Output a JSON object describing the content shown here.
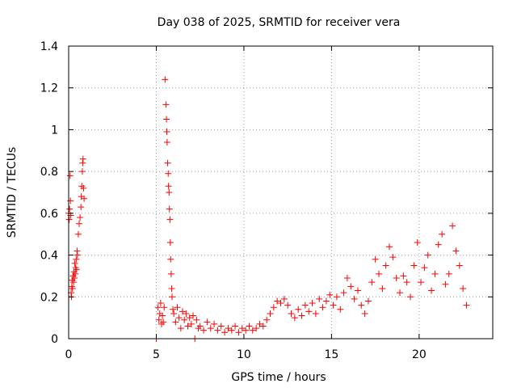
{
  "chart_data": {
    "type": "scatter",
    "title": "Day 038 of 2025, SRMTID for receiver vera",
    "xlabel": "GPS time / hours",
    "ylabel": "SRMTID / TECUs",
    "xlim": [
      0,
      24.2
    ],
    "ylim": [
      0,
      1.4
    ],
    "x_ticks": [
      0,
      5,
      10,
      15,
      20
    ],
    "x_tick_labels": [
      "0",
      "5",
      "10",
      "15",
      "20"
    ],
    "y_ticks": [
      0,
      0.2,
      0.4,
      0.6,
      0.8,
      1.0,
      1.2,
      1.4
    ],
    "y_tick_labels": [
      "0",
      "0.2",
      "0.4",
      "0.6",
      "0.8",
      "1",
      "1.2",
      "1.4"
    ],
    "grid": true,
    "marker": "+",
    "series": [
      {
        "name": "SRMTID",
        "color": "#ff0000",
        "points": [
          [
            0.0,
            0.6
          ],
          [
            0.03,
            0.57
          ],
          [
            0.05,
            0.62
          ],
          [
            0.08,
            0.78
          ],
          [
            0.1,
            0.66
          ],
          [
            0.12,
            0.59
          ],
          [
            0.14,
            0.22
          ],
          [
            0.16,
            0.2
          ],
          [
            0.18,
            0.25
          ],
          [
            0.2,
            0.28
          ],
          [
            0.22,
            0.24
          ],
          [
            0.25,
            0.3
          ],
          [
            0.28,
            0.27
          ],
          [
            0.3,
            0.32
          ],
          [
            0.33,
            0.29
          ],
          [
            0.35,
            0.36
          ],
          [
            0.38,
            0.31
          ],
          [
            0.4,
            0.34
          ],
          [
            0.43,
            0.38
          ],
          [
            0.45,
            0.33
          ],
          [
            0.48,
            0.42
          ],
          [
            0.5,
            0.4
          ],
          [
            0.55,
            0.5
          ],
          [
            0.6,
            0.55
          ],
          [
            0.65,
            0.58
          ],
          [
            0.7,
            0.63
          ],
          [
            0.72,
            0.68
          ],
          [
            0.75,
            0.73
          ],
          [
            0.78,
            0.8
          ],
          [
            0.8,
            0.84
          ],
          [
            0.82,
            0.86
          ],
          [
            0.85,
            0.72
          ],
          [
            0.88,
            0.67
          ],
          [
            5.0,
            0.0
          ],
          [
            5.1,
            0.15
          ],
          [
            5.15,
            0.09
          ],
          [
            5.2,
            0.12
          ],
          [
            5.25,
            0.17
          ],
          [
            5.3,
            0.07
          ],
          [
            5.35,
            0.11
          ],
          [
            5.4,
            0.08
          ],
          [
            5.45,
            0.15
          ],
          [
            5.5,
            1.24
          ],
          [
            5.55,
            1.12
          ],
          [
            5.58,
            1.05
          ],
          [
            5.6,
            0.99
          ],
          [
            5.62,
            0.94
          ],
          [
            5.65,
            0.84
          ],
          [
            5.68,
            0.79
          ],
          [
            5.7,
            0.73
          ],
          [
            5.73,
            0.7
          ],
          [
            5.75,
            0.62
          ],
          [
            5.78,
            0.57
          ],
          [
            5.8,
            0.46
          ],
          [
            5.82,
            0.38
          ],
          [
            5.85,
            0.31
          ],
          [
            5.88,
            0.24
          ],
          [
            5.9,
            0.2
          ],
          [
            5.95,
            0.14
          ],
          [
            6.0,
            0.12
          ],
          [
            6.1,
            0.08
          ],
          [
            6.2,
            0.15
          ],
          [
            6.3,
            0.1
          ],
          [
            6.4,
            0.05
          ],
          [
            6.5,
            0.13
          ],
          [
            6.6,
            0.09
          ],
          [
            6.7,
            0.12
          ],
          [
            6.8,
            0.06
          ],
          [
            6.9,
            0.1
          ],
          [
            7.0,
            0.07
          ],
          [
            7.1,
            0.11
          ],
          [
            7.2,
            0.0
          ],
          [
            7.3,
            0.09
          ],
          [
            7.4,
            0.05
          ],
          [
            7.5,
            0.06
          ],
          [
            7.7,
            0.04
          ],
          [
            7.9,
            0.08
          ],
          [
            8.1,
            0.05
          ],
          [
            8.3,
            0.07
          ],
          [
            8.5,
            0.04
          ],
          [
            8.7,
            0.06
          ],
          [
            8.9,
            0.03
          ],
          [
            9.1,
            0.05
          ],
          [
            9.3,
            0.04
          ],
          [
            9.5,
            0.06
          ],
          [
            9.7,
            0.03
          ],
          [
            9.9,
            0.05
          ],
          [
            10.1,
            0.04
          ],
          [
            10.3,
            0.06
          ],
          [
            10.5,
            0.04
          ],
          [
            10.7,
            0.05
          ],
          [
            10.9,
            0.07
          ],
          [
            11.1,
            0.06
          ],
          [
            11.3,
            0.09
          ],
          [
            11.5,
            0.12
          ],
          [
            11.7,
            0.15
          ],
          [
            11.9,
            0.18
          ],
          [
            12.1,
            0.17
          ],
          [
            12.3,
            0.19
          ],
          [
            12.5,
            0.16
          ],
          [
            12.7,
            0.12
          ],
          [
            12.9,
            0.1
          ],
          [
            13.1,
            0.14
          ],
          [
            13.3,
            0.11
          ],
          [
            13.5,
            0.16
          ],
          [
            13.7,
            0.13
          ],
          [
            13.9,
            0.17
          ],
          [
            14.1,
            0.12
          ],
          [
            14.3,
            0.19
          ],
          [
            14.5,
            0.15
          ],
          [
            14.7,
            0.18
          ],
          [
            14.9,
            0.21
          ],
          [
            15.1,
            0.16
          ],
          [
            15.3,
            0.2
          ],
          [
            15.5,
            0.14
          ],
          [
            15.7,
            0.22
          ],
          [
            15.9,
            0.29
          ],
          [
            16.1,
            0.25
          ],
          [
            16.3,
            0.19
          ],
          [
            16.5,
            0.23
          ],
          [
            16.7,
            0.16
          ],
          [
            16.9,
            0.12
          ],
          [
            17.1,
            0.18
          ],
          [
            17.3,
            0.27
          ],
          [
            17.5,
            0.38
          ],
          [
            17.7,
            0.31
          ],
          [
            17.9,
            0.24
          ],
          [
            18.1,
            0.35
          ],
          [
            18.3,
            0.44
          ],
          [
            18.5,
            0.39
          ],
          [
            18.7,
            0.29
          ],
          [
            18.9,
            0.22
          ],
          [
            19.1,
            0.3
          ],
          [
            19.3,
            0.27
          ],
          [
            19.5,
            0.2
          ],
          [
            19.7,
            0.35
          ],
          [
            19.9,
            0.46
          ],
          [
            20.1,
            0.27
          ],
          [
            20.3,
            0.34
          ],
          [
            20.5,
            0.4
          ],
          [
            20.7,
            0.23
          ],
          [
            20.9,
            0.31
          ],
          [
            21.1,
            0.45
          ],
          [
            21.3,
            0.5
          ],
          [
            21.5,
            0.26
          ],
          [
            21.7,
            0.31
          ],
          [
            21.9,
            0.54
          ],
          [
            22.1,
            0.42
          ],
          [
            22.3,
            0.35
          ],
          [
            22.5,
            0.24
          ],
          [
            22.7,
            0.16
          ]
        ]
      }
    ]
  }
}
